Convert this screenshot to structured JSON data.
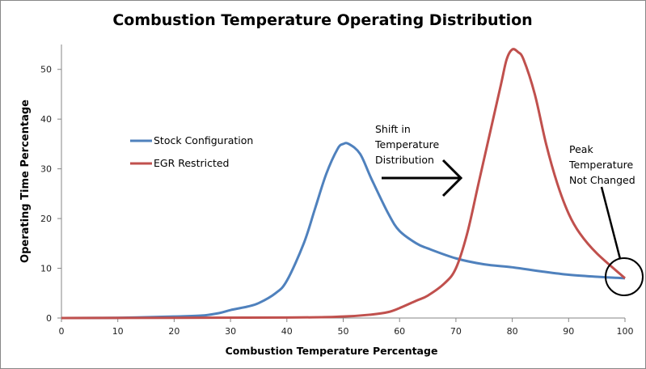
{
  "chart_data": {
    "type": "line",
    "title": "Combustion Temperature Operating Distribution",
    "xlabel": "Combustion Temperature Percentage",
    "ylabel": "Operating Time Percentage",
    "xlim": [
      0,
      100
    ],
    "ylim": [
      0,
      55
    ],
    "xticks": [
      0,
      10,
      20,
      30,
      40,
      50,
      60,
      70,
      80,
      90,
      100
    ],
    "yticks": [
      0,
      10,
      20,
      30,
      40,
      50
    ],
    "grid": false,
    "legend": "left-middle",
    "series": [
      {
        "name": "Stock Configuration",
        "color": "#4f81bd",
        "x": [
          0,
          10,
          20,
          25,
          28,
          30,
          33,
          35,
          38,
          40,
          43,
          45,
          47,
          49,
          50,
          51,
          53,
          55,
          58,
          60,
          63,
          65,
          70,
          75,
          80,
          85,
          90,
          95,
          100
        ],
        "y": [
          0,
          0.05,
          0.3,
          0.5,
          1,
          1.6,
          2.3,
          3,
          5,
          7.5,
          15,
          22,
          29,
          34,
          35,
          35,
          33,
          28,
          21,
          17.5,
          15,
          14,
          12,
          10.8,
          10.2,
          9.4,
          8.7,
          8.3,
          8
        ]
      },
      {
        "name": "EGR Restricted",
        "color": "#c0504d",
        "x": [
          0,
          40,
          50,
          55,
          58,
          60,
          63,
          65,
          68,
          70,
          72,
          74,
          76,
          78,
          79,
          80,
          81,
          82,
          84,
          86,
          88,
          90,
          92,
          95,
          100
        ],
        "y": [
          0,
          0.1,
          0.3,
          0.7,
          1.2,
          2,
          3.5,
          4.5,
          7,
          10,
          17,
          27,
          37,
          47,
          52,
          54,
          53.5,
          52,
          45,
          35,
          27,
          21,
          17,
          13,
          8
        ]
      }
    ],
    "annotations": [
      {
        "lines": [
          "Shift in",
          "Temperature",
          "Distribution"
        ]
      },
      {
        "lines": [
          "Peak",
          "Temperature",
          "Not Changed"
        ]
      }
    ]
  }
}
